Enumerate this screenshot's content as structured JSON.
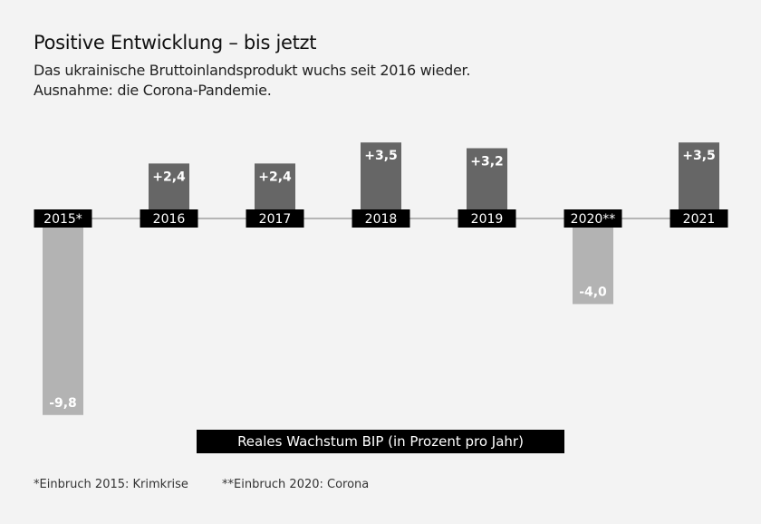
{
  "header": {
    "title": "Positive Entwicklung – bis jetzt",
    "subtitle_lines": [
      "Das ukrainische Bruttoinlandsprodukt wuchs seit 2016 wieder.",
      "Ausnahme: die Corona-Pandemie."
    ]
  },
  "chart_data": {
    "type": "bar",
    "title": "Positive Entwicklung – bis jetzt",
    "categories": [
      "2015*",
      "2016",
      "2017",
      "2018",
      "2019",
      "2020**",
      "2021"
    ],
    "values": [
      -9.8,
      2.4,
      2.4,
      3.5,
      3.2,
      -4.0,
      3.5
    ],
    "data_labels": [
      "-9,8",
      "+2,4",
      "+2,4",
      "+3,5",
      "+3,2",
      "-4,0",
      "+3,5"
    ],
    "ylabel": "Reales Wachstum BIP (in Prozent pro Jahr)",
    "colors": {
      "positive": "#666666",
      "negative": "#b3b3b3",
      "label_bg": "#000000"
    }
  },
  "legend": {
    "label": "Reales Wachstum BIP (in Prozent pro Jahr)"
  },
  "footnotes": [
    "*Einbruch 2015: Krimkrise",
    "**Einbruch 2020: Corona"
  ]
}
